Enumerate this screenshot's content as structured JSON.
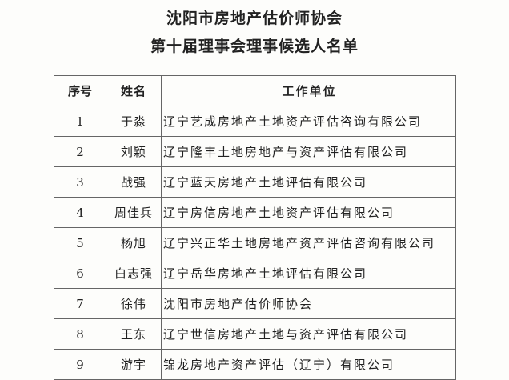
{
  "title_line1": "沈阳市房地产估价师协会",
  "title_line2": "第十届理事会理事候选人名单",
  "table": {
    "headers": [
      "序号",
      "姓名",
      "工作单位"
    ],
    "rows": [
      [
        "1",
        "于淼",
        "辽宁艺成房地产土地资产评估咨询有限公司"
      ],
      [
        "2",
        "刘颖",
        "辽宁隆丰土地房地产与资产评估有限公司"
      ],
      [
        "3",
        "战强",
        "辽宁蓝天房地产土地评估有限公司"
      ],
      [
        "4",
        "周佳兵",
        "辽宁房信房地产土地资产评估有限公司"
      ],
      [
        "5",
        "杨旭",
        "辽宁兴正华土地房地产资产评估咨询有限公司"
      ],
      [
        "6",
        "白志强",
        "辽宁岳华房地产土地评估有限公司"
      ],
      [
        "7",
        "徐伟",
        "沈阳市房地产估价师协会"
      ],
      [
        "8",
        "王东",
        "辽宁世信房地产土地与资产评估有限公司"
      ],
      [
        "9",
        "游宇",
        "锦龙房地产资产评估（辽宁）有限公司"
      ]
    ]
  }
}
